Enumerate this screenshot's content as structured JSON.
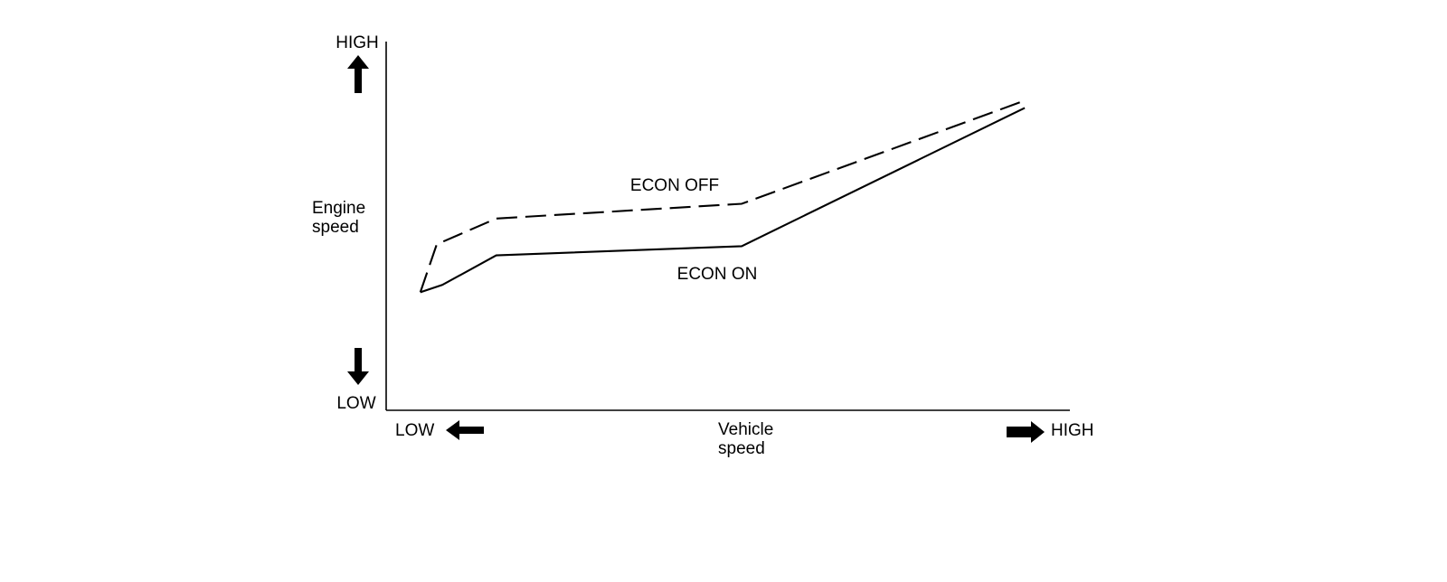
{
  "chart_data": {
    "type": "line",
    "title": "",
    "ylabel": [
      "Engine",
      "speed"
    ],
    "xlabel": [
      "Vehicle",
      "speed"
    ],
    "y_axis_ends": {
      "high": "HIGH",
      "low": "LOW"
    },
    "x_axis_ends": {
      "low": "LOW",
      "high": "HIGH"
    },
    "xlim": [
      0,
      100
    ],
    "ylim": [
      0,
      100
    ],
    "grid": false,
    "legend": "none",
    "series": [
      {
        "name": "ECON OFF",
        "style": "dashed",
        "color": "#000000",
        "points": [
          [
            5,
            32
          ],
          [
            7.4,
            45
          ],
          [
            16.1,
            52
          ],
          [
            52,
            56
          ],
          [
            93.4,
            84
          ]
        ]
      },
      {
        "name": "ECON ON",
        "style": "solid",
        "color": "#000000",
        "points": [
          [
            5,
            32
          ],
          [
            8.2,
            34
          ],
          [
            16.1,
            42
          ],
          [
            52,
            44.5
          ],
          [
            93.4,
            82
          ]
        ]
      }
    ]
  }
}
